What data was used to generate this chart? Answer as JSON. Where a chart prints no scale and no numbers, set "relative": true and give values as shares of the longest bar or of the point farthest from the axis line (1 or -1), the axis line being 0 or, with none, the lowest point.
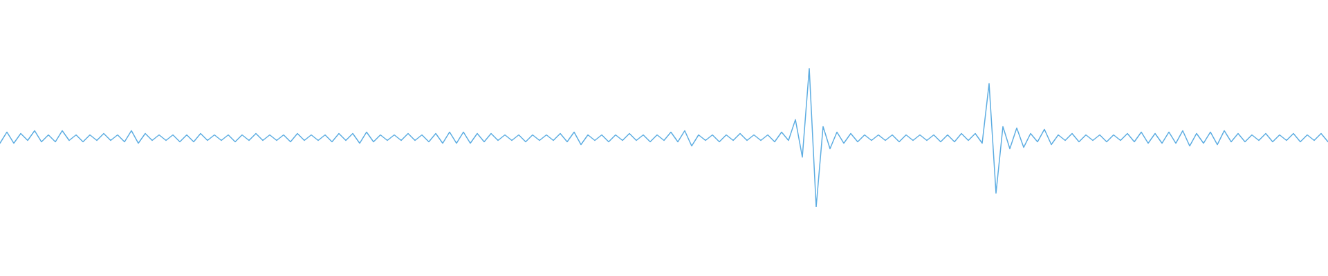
{
  "chart_data": {
    "type": "line",
    "relative": true,
    "categories": [
      null,
      null,
      null,
      null,
      null,
      null,
      null,
      null,
      null,
      null,
      null,
      null,
      null,
      null,
      null,
      null,
      null,
      null,
      null,
      null,
      null,
      null,
      null,
      null,
      null,
      null,
      null,
      null,
      null,
      null,
      null,
      null,
      null,
      null,
      null,
      null,
      null,
      null,
      null,
      null,
      null,
      null,
      null,
      null,
      null,
      null,
      null,
      null,
      null,
      null,
      null,
      null,
      null,
      null,
      null,
      null,
      null,
      null,
      null,
      null,
      null,
      null,
      null,
      null,
      null,
      null,
      null,
      null,
      null,
      null,
      null,
      null,
      null,
      null,
      null,
      null,
      null,
      null,
      null,
      null,
      null,
      null,
      null,
      null,
      null,
      null,
      null,
      null,
      null,
      null,
      null,
      null,
      null,
      null,
      null,
      null,
      null,
      null,
      null,
      null,
      null,
      null,
      null,
      null,
      null,
      null,
      null,
      null,
      null,
      null,
      null,
      null,
      null,
      null,
      null,
      null,
      null,
      null,
      null,
      null,
      null,
      null,
      null,
      null,
      null,
      null,
      null,
      null,
      null,
      null,
      null,
      null,
      null,
      null,
      null,
      null,
      null,
      null,
      null,
      null,
      null,
      null,
      null,
      null,
      null,
      null,
      null,
      null,
      null,
      null,
      null,
      null,
      null,
      null,
      null,
      null,
      null,
      null,
      null,
      null,
      null,
      null,
      null,
      null,
      null,
      null,
      null,
      null,
      null,
      null,
      null,
      null,
      null,
      null,
      null,
      null,
      null,
      null,
      null,
      null,
      null,
      null,
      null,
      null,
      null,
      null,
      null,
      null,
      null,
      null,
      null,
      null,
      null
    ],
    "series": [
      {
        "color": "#5dade2",
        "values": [
          0.46,
          0.54,
          0.46,
          0.53,
          0.48,
          0.55,
          0.47,
          0.52,
          0.47,
          0.55,
          0.48,
          0.52,
          0.47,
          0.52,
          0.48,
          0.53,
          0.48,
          0.52,
          0.47,
          0.55,
          0.46,
          0.53,
          0.48,
          0.52,
          0.48,
          0.52,
          0.47,
          0.52,
          0.47,
          0.53,
          0.48,
          0.52,
          0.48,
          0.52,
          0.47,
          0.52,
          0.48,
          0.53,
          0.48,
          0.52,
          0.48,
          0.52,
          0.47,
          0.53,
          0.48,
          0.52,
          0.48,
          0.52,
          0.47,
          0.53,
          0.48,
          0.53,
          0.46,
          0.54,
          0.47,
          0.52,
          0.48,
          0.52,
          0.48,
          0.53,
          0.48,
          0.52,
          0.47,
          0.53,
          0.46,
          0.54,
          0.46,
          0.54,
          0.46,
          0.53,
          0.47,
          0.53,
          0.48,
          0.52,
          0.48,
          0.52,
          0.47,
          0.52,
          0.48,
          0.52,
          0.48,
          0.53,
          0.47,
          0.54,
          0.45,
          0.52,
          0.48,
          0.52,
          0.47,
          0.52,
          0.48,
          0.53,
          0.48,
          0.52,
          0.47,
          0.52,
          0.48,
          0.54,
          0.47,
          0.55,
          0.44,
          0.52,
          0.48,
          0.52,
          0.47,
          0.52,
          0.48,
          0.53,
          0.48,
          0.52,
          0.48,
          0.52,
          0.47,
          0.54,
          0.48,
          0.63,
          0.36,
          1,
          0,
          0.58,
          0.42,
          0.54,
          0.46,
          0.53,
          0.47,
          0.52,
          0.48,
          0.52,
          0.48,
          0.52,
          0.47,
          0.52,
          0.48,
          0.52,
          0.48,
          0.52,
          0.47,
          0.52,
          0.47,
          0.53,
          0.48,
          0.53,
          0.46,
          0.89,
          0.1,
          0.58,
          0.42,
          0.57,
          0.43,
          0.53,
          0.47,
          0.56,
          0.45,
          0.52,
          0.48,
          0.53,
          0.47,
          0.52,
          0.48,
          0.52,
          0.47,
          0.52,
          0.48,
          0.53,
          0.47,
          0.54,
          0.46,
          0.53,
          0.46,
          0.54,
          0.46,
          0.55,
          0.44,
          0.53,
          0.46,
          0.54,
          0.45,
          0.55,
          0.47,
          0.53,
          0.47,
          0.52,
          0.48,
          0.53,
          0.47,
          0.52,
          0.48,
          0.53,
          0.47,
          0.52,
          0.48,
          0.53,
          0.47
        ]
      }
    ]
  }
}
